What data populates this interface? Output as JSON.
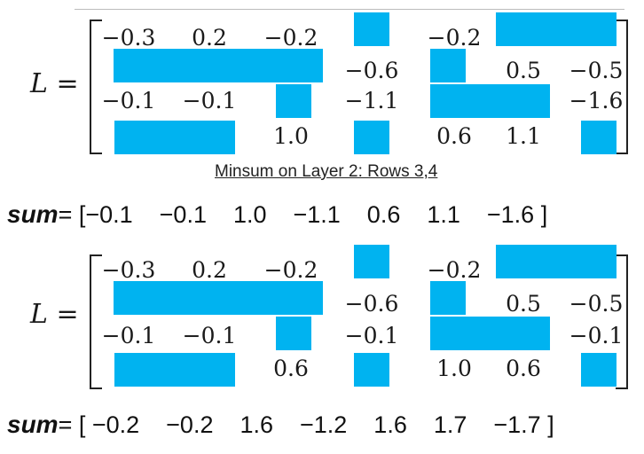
{
  "matrix1": {
    "label": "L =",
    "cells": [
      [
        "−0.3",
        "0.2",
        "−0.2",
        "",
        "−0.2",
        "",
        ""
      ],
      [
        "",
        "",
        "",
        "−0.6",
        "",
        "0.5",
        "−0.5"
      ],
      [
        "−0.1",
        "−0.1",
        "",
        "−1.1",
        "",
        "",
        "−1.6"
      ],
      [
        "",
        "",
        "1.0",
        "",
        "0.6",
        "1.1",
        ""
      ]
    ]
  },
  "caption": "Minsum on Layer 2: Rows 3,4",
  "sum1": {
    "label": "sum",
    "text": "= [−0.1    −0.1    1.0    −1.1    0.6    1.1    −1.6 ]"
  },
  "matrix2": {
    "label": "L =",
    "cells": [
      [
        "−0.3",
        "0.2",
        "−0.2",
        "",
        "−0.2",
        "",
        ""
      ],
      [
        "",
        "",
        "",
        "−0.6",
        "",
        "0.5",
        "−0.5"
      ],
      [
        "−0.1",
        "−0.1",
        "",
        "−0.1",
        "",
        "",
        "−0.1"
      ],
      [
        "",
        "",
        "0.6",
        "",
        "1.0",
        "0.6",
        ""
      ]
    ]
  },
  "sum2": {
    "label": "sum",
    "text": "= [ −0.2    −0.2    1.6    −1.2    1.6    1.7    −1.7 ]"
  },
  "colors": {
    "block": "#00b3f0"
  }
}
